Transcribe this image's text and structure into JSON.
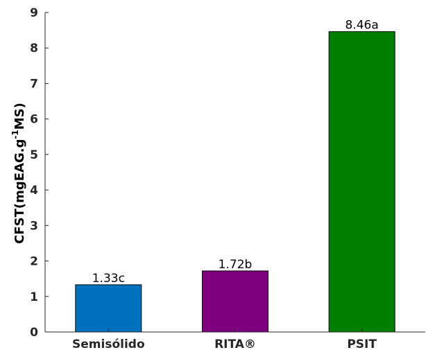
{
  "chart_data": {
    "type": "bar",
    "title": "",
    "xlabel": "",
    "ylabel": {
      "prefix": "CFST(mgEAG.g",
      "superscript": "-1",
      "suffix": "MS)"
    },
    "ylim": [
      0,
      9
    ],
    "yticks": [
      "0",
      "1",
      "2",
      "3",
      "4",
      "5",
      "6",
      "7",
      "8",
      "9"
    ],
    "categories": [
      "Semisólido",
      "RITA®",
      "PSIT"
    ],
    "values": [
      1.33,
      1.72,
      8.46
    ],
    "data_labels": [
      "1.33c",
      "1.72b",
      "8.46a"
    ],
    "colors": [
      "#0072BD",
      "#7E007E",
      "#007F00"
    ],
    "grid": false,
    "legend": "none"
  }
}
